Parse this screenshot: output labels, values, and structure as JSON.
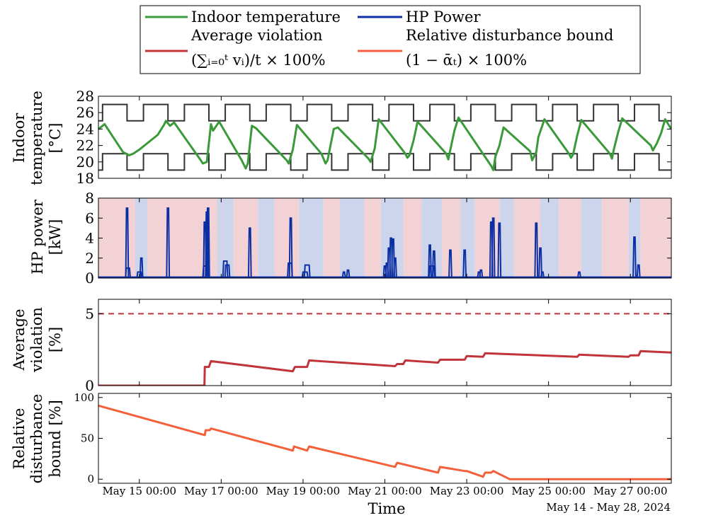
{
  "legend": {
    "items": [
      {
        "label_lines": [
          "Indoor temperature"
        ],
        "color": "#3a9a3a"
      },
      {
        "label_lines": [
          "HP Power"
        ],
        "color": "#0b2fa3"
      },
      {
        "label_lines": [
          "Average violation",
          "(∑ᵢ₌₀ᵗ vᵢ)/t × 100%"
        ],
        "color": "#c0343a"
      },
      {
        "label_lines": [
          "Relative disturbance bound",
          "(1 − ᾱₜ) × 100%"
        ],
        "color": "#f4603a"
      }
    ]
  },
  "x_axis": {
    "label": "Time",
    "note": "May 14 - May 28, 2024",
    "domain_days": [
      0,
      14
    ],
    "ticks": [
      {
        "day": 1,
        "label": "May 15 00:00"
      },
      {
        "day": 3,
        "label": "May 17 00:00"
      },
      {
        "day": 5,
        "label": "May 19 00:00"
      },
      {
        "day": 7,
        "label": "May 21 00:00"
      },
      {
        "day": 9,
        "label": "May 23 00:00"
      },
      {
        "day": 11,
        "label": "May 25 00:00"
      },
      {
        "day": 13,
        "label": "May 27 00:00"
      }
    ]
  },
  "colors": {
    "temp": "#3a9a3a",
    "bounds": "#333333",
    "power": "#0b2fa3",
    "violation": "#c0343a",
    "disturbance": "#f4603a",
    "heat_band": "#f2d2d4",
    "cool_band": "#cdd5ec",
    "axes": "#000000"
  },
  "chart_data": [
    {
      "type": "line",
      "title": "",
      "ylabel_lines": [
        "Indoor",
        "temperature",
        "[°C]"
      ],
      "ylim": [
        18,
        28
      ],
      "yticks": [
        18,
        20,
        22,
        24,
        26,
        28
      ],
      "comfort_bounds": {
        "upper_day": 27,
        "upper_night": 25,
        "lower_day": 21,
        "lower_night": 19,
        "day_intervals": [
          [
            0.1,
            0.7
          ],
          [
            1.1,
            1.7
          ],
          [
            2.1,
            2.7
          ],
          [
            3.1,
            3.7
          ],
          [
            4.1,
            4.7
          ],
          [
            5.1,
            5.7
          ],
          [
            6.1,
            6.7
          ],
          [
            7.1,
            7.7
          ],
          [
            8.1,
            8.7
          ],
          [
            9.1,
            9.7
          ],
          [
            10.1,
            10.7
          ],
          [
            11.1,
            11.7
          ],
          [
            12.1,
            12.7
          ],
          [
            13.1,
            13.7
          ]
        ]
      },
      "series": [
        {
          "name": "Indoor temperature",
          "x": [
            0,
            0.15,
            0.6,
            0.75,
            0.85,
            1.0,
            1.45,
            1.6,
            1.65,
            1.75,
            1.85,
            2.5,
            2.55,
            2.65,
            2.75,
            2.8,
            2.95,
            3.5,
            3.6,
            3.65,
            3.75,
            3.85,
            4.6,
            4.65,
            4.75,
            4.85,
            5.45,
            5.55,
            5.6,
            5.75,
            5.85,
            6.6,
            6.65,
            6.75,
            6.85,
            7.5,
            7.55,
            7.6,
            7.7,
            7.8,
            8.5,
            8.55,
            8.6,
            8.7,
            8.8,
            9.6,
            9.65,
            9.7,
            9.8,
            9.9,
            10.55,
            10.6,
            10.7,
            10.75,
            10.9,
            11.5,
            11.55,
            11.6,
            11.7,
            11.8,
            12.5,
            12.55,
            12.6,
            12.7,
            12.8,
            13.5,
            13.55,
            13.65,
            13.75,
            13.85,
            14
          ],
          "y": [
            24.0,
            24.6,
            21.2,
            20.8,
            21.0,
            21.5,
            23.3,
            24.5,
            25.0,
            24.4,
            24.8,
            20.2,
            19.8,
            20.0,
            24.6,
            23.8,
            24.9,
            20.2,
            19.2,
            19.8,
            24.4,
            24.1,
            20.2,
            19.8,
            21.5,
            24.5,
            21.0,
            19.8,
            20.2,
            24.0,
            24.2,
            20.4,
            20.0,
            21.6,
            25.2,
            21.0,
            20.5,
            20.8,
            22.6,
            24.9,
            21.0,
            20.3,
            21.5,
            23.8,
            25.4,
            19.5,
            19.0,
            20.6,
            22.0,
            24.2,
            21.3,
            20.2,
            21.2,
            23.0,
            25.2,
            21.0,
            20.5,
            20.9,
            23.2,
            25.1,
            21.0,
            20.4,
            21.6,
            23.6,
            25.3,
            22.0,
            21.4,
            22.3,
            23.5,
            25.2,
            24.0
          ]
        }
      ]
    },
    {
      "type": "line",
      "title": "",
      "ylabel_lines": [
        "HP power",
        "[kW]"
      ],
      "ylim": [
        0,
        8
      ],
      "yticks": [
        0,
        2,
        4,
        6,
        8
      ],
      "background_bands": [
        {
          "from": 0,
          "to": 0.2,
          "kind": "heat"
        },
        {
          "from": 0.2,
          "to": 0.9,
          "kind": "heat"
        },
        {
          "from": 0.9,
          "to": 1.2,
          "kind": "cool"
        },
        {
          "from": 1.2,
          "to": 2.9,
          "kind": "heat"
        },
        {
          "from": 2.9,
          "to": 3.3,
          "kind": "cool"
        },
        {
          "from": 3.3,
          "to": 3.9,
          "kind": "heat"
        },
        {
          "from": 3.9,
          "to": 4.3,
          "kind": "cool"
        },
        {
          "from": 4.3,
          "to": 4.9,
          "kind": "heat"
        },
        {
          "from": 4.9,
          "to": 5.5,
          "kind": "cool"
        },
        {
          "from": 5.5,
          "to": 5.9,
          "kind": "heat"
        },
        {
          "from": 5.9,
          "to": 6.5,
          "kind": "cool"
        },
        {
          "from": 6.5,
          "to": 6.9,
          "kind": "heat"
        },
        {
          "from": 6.9,
          "to": 7.45,
          "kind": "cool"
        },
        {
          "from": 7.45,
          "to": 7.9,
          "kind": "heat"
        },
        {
          "from": 7.9,
          "to": 8.4,
          "kind": "cool"
        },
        {
          "from": 8.4,
          "to": 8.85,
          "kind": "heat"
        },
        {
          "from": 8.85,
          "to": 9.2,
          "kind": "cool"
        },
        {
          "from": 9.2,
          "to": 9.8,
          "kind": "heat"
        },
        {
          "from": 9.8,
          "to": 10.15,
          "kind": "cool"
        },
        {
          "from": 10.15,
          "to": 10.8,
          "kind": "heat"
        },
        {
          "from": 10.8,
          "to": 11.25,
          "kind": "cool"
        },
        {
          "from": 11.25,
          "to": 11.8,
          "kind": "heat"
        },
        {
          "from": 11.8,
          "to": 12.3,
          "kind": "cool"
        },
        {
          "from": 12.3,
          "to": 12.95,
          "kind": "heat"
        },
        {
          "from": 12.95,
          "to": 13.25,
          "kind": "cool"
        },
        {
          "from": 13.25,
          "to": 14,
          "kind": "heat"
        }
      ],
      "series": [
        {
          "name": "HP Power",
          "baseline": 0.1,
          "spikes": [
            {
              "x": 0.7,
              "y": 7.0,
              "w": 0.03
            },
            {
              "x": 0.72,
              "y": 1.0,
              "w": 0.08
            },
            {
              "x": 1.05,
              "y": 2.0,
              "w": 0.03
            },
            {
              "x": 1.0,
              "y": 0.6,
              "w": 0.08
            },
            {
              "x": 1.7,
              "y": 7.0,
              "w": 0.03
            },
            {
              "x": 2.6,
              "y": 5.6,
              "w": 0.03
            },
            {
              "x": 2.65,
              "y": 6.6,
              "w": 0.03
            },
            {
              "x": 2.68,
              "y": 7.0,
              "w": 0.03
            },
            {
              "x": 2.62,
              "y": 1.2,
              "w": 0.1
            },
            {
              "x": 3.1,
              "y": 1.7,
              "w": 0.08
            },
            {
              "x": 3.15,
              "y": 1.3,
              "w": 0.08
            },
            {
              "x": 3.7,
              "y": 5.0,
              "w": 0.03
            },
            {
              "x": 4.7,
              "y": 6.0,
              "w": 0.03
            },
            {
              "x": 4.68,
              "y": 1.5,
              "w": 0.08
            },
            {
              "x": 5.1,
              "y": 1.3,
              "w": 0.1
            },
            {
              "x": 5.05,
              "y": 0.6,
              "w": 0.1
            },
            {
              "x": 6.0,
              "y": 0.6,
              "w": 0.03
            },
            {
              "x": 6.1,
              "y": 0.8,
              "w": 0.03
            },
            {
              "x": 7.0,
              "y": 1.2,
              "w": 0.03
            },
            {
              "x": 7.1,
              "y": 3.0,
              "w": 0.03
            },
            {
              "x": 7.15,
              "y": 4.0,
              "w": 0.03
            },
            {
              "x": 7.2,
              "y": 3.9,
              "w": 0.03
            },
            {
              "x": 7.25,
              "y": 2.0,
              "w": 0.03
            },
            {
              "x": 7.05,
              "y": 1.5,
              "w": 0.03
            },
            {
              "x": 8.1,
              "y": 3.3,
              "w": 0.03
            },
            {
              "x": 8.2,
              "y": 2.7,
              "w": 0.03
            },
            {
              "x": 8.15,
              "y": 1.2,
              "w": 0.1
            },
            {
              "x": 8.6,
              "y": 2.8,
              "w": 0.03
            },
            {
              "x": 8.95,
              "y": 2.8,
              "w": 0.03
            },
            {
              "x": 9.3,
              "y": 0.6,
              "w": 0.03
            },
            {
              "x": 9.35,
              "y": 0.8,
              "w": 0.03
            },
            {
              "x": 9.6,
              "y": 5.6,
              "w": 0.03
            },
            {
              "x": 9.65,
              "y": 6.0,
              "w": 0.03
            },
            {
              "x": 9.8,
              "y": 5.5,
              "w": 0.03
            },
            {
              "x": 10.7,
              "y": 5.5,
              "w": 0.03
            },
            {
              "x": 10.8,
              "y": 3.0,
              "w": 0.03
            },
            {
              "x": 10.85,
              "y": 0.6,
              "w": 0.03
            },
            {
              "x": 11.75,
              "y": 0.6,
              "w": 0.03
            },
            {
              "x": 13.1,
              "y": 4.1,
              "w": 0.03
            },
            {
              "x": 13.2,
              "y": 1.3,
              "w": 0.03
            }
          ]
        }
      ]
    },
    {
      "type": "line",
      "title": "",
      "ylabel_lines": [
        "Average",
        "violation",
        "[%]"
      ],
      "ylim": [
        0,
        6
      ],
      "yticks": [
        0,
        5
      ],
      "reference_line": {
        "y": 5,
        "style": "dashed"
      },
      "series": [
        {
          "name": "Average violation",
          "x": [
            0,
            2.59,
            2.6,
            2.7,
            2.75,
            4.75,
            4.8,
            5.1,
            5.15,
            7.25,
            7.3,
            7.45,
            7.5,
            8.3,
            8.35,
            8.95,
            9.0,
            9.4,
            9.45,
            11.7,
            11.75,
            12.95,
            13.0,
            13.2,
            13.25,
            14
          ],
          "y": [
            0,
            0,
            1.3,
            1.3,
            1.7,
            1.0,
            1.3,
            1.3,
            1.75,
            1.35,
            1.5,
            1.5,
            1.75,
            1.6,
            1.8,
            1.8,
            2.05,
            2.0,
            2.25,
            2.0,
            2.15,
            2.0,
            2.1,
            2.1,
            2.4,
            2.3
          ]
        }
      ]
    },
    {
      "type": "line",
      "title": "",
      "ylabel_lines": [
        "Relative",
        "disturbance",
        "bound [%]"
      ],
      "ylim": [
        -5,
        105
      ],
      "yticks": [
        0,
        50,
        100
      ],
      "series": [
        {
          "name": "Relative disturbance bound",
          "x": [
            0,
            2.6,
            2.62,
            2.72,
            2.75,
            4.75,
            4.78,
            5.1,
            5.15,
            7.25,
            7.3,
            8.3,
            8.35,
            8.95,
            9.0,
            9.4,
            9.45,
            9.6,
            9.65,
            10.05,
            14
          ],
          "y": [
            90,
            54,
            60,
            60,
            62,
            35,
            40,
            35,
            40,
            15,
            20,
            8,
            15,
            10,
            10,
            3,
            8,
            8,
            10,
            0,
            0
          ]
        }
      ]
    }
  ]
}
